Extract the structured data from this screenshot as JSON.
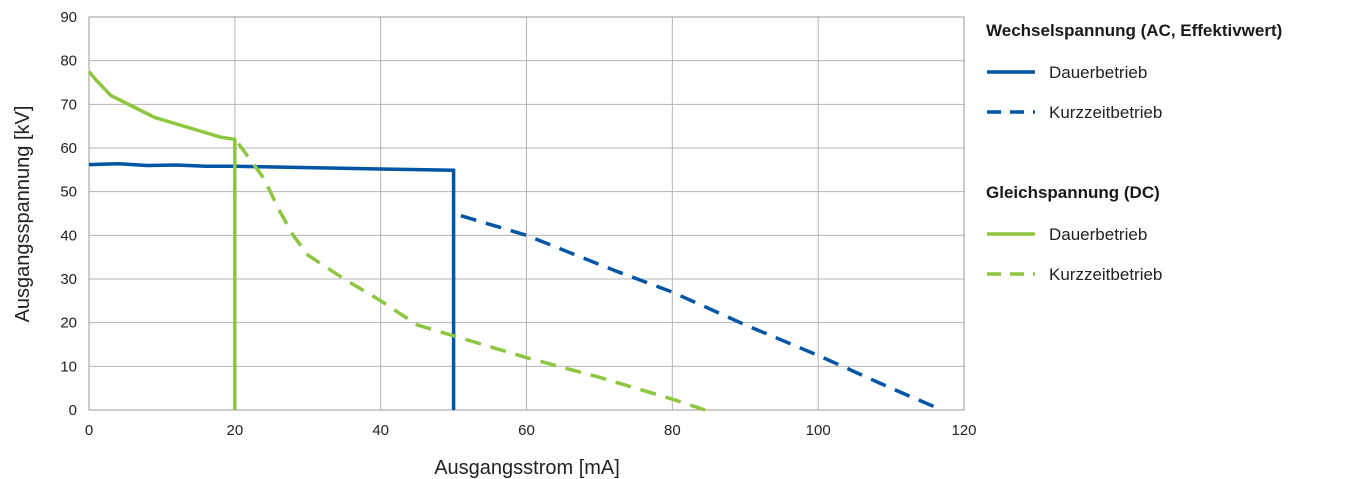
{
  "chart_data": {
    "type": "line",
    "xlabel": "Ausgangsstrom [mA]",
    "ylabel": "Ausgangsspannung [kV]",
    "xlim": [
      0,
      120
    ],
    "ylim": [
      0,
      90
    ],
    "x_ticks": [
      0,
      20,
      40,
      60,
      80,
      100,
      120
    ],
    "y_ticks": [
      0,
      10,
      20,
      30,
      40,
      50,
      60,
      70,
      80,
      90
    ],
    "grid": true,
    "legend_position": "right",
    "legend_groups": [
      {
        "heading": "Wechselspannung (AC, Effektivwert)",
        "entries": [
          {
            "label": "Dauerbetrieb",
            "color": "#0055a4",
            "dash": "solid"
          },
          {
            "label": "Kurzzeitbetrieb",
            "color": "#0055a4",
            "dash": "dashed"
          }
        ]
      },
      {
        "heading": "Gleichspannung (DC)",
        "entries": [
          {
            "label": "Dauerbetrieb",
            "color": "#8dc63f",
            "dash": "solid"
          },
          {
            "label": "Kurzzeitbetrieb",
            "color": "#8dc63f",
            "dash": "dashed"
          }
        ]
      }
    ],
    "series": [
      {
        "group": "Wechselspannung (AC, Effektivwert)",
        "name": "Dauerbetrieb",
        "color": "#0055a4",
        "dash": "solid",
        "points": [
          [
            0,
            56.2
          ],
          [
            4,
            56.4
          ],
          [
            8,
            56.0
          ],
          [
            12,
            56.1
          ],
          [
            16,
            55.8
          ],
          [
            20,
            55.8
          ],
          [
            30,
            55.5
          ],
          [
            40,
            55.2
          ],
          [
            50,
            54.9
          ],
          [
            50,
            0
          ]
        ]
      },
      {
        "group": "Wechselspannung (AC, Effektivwert)",
        "name": "Kurzzeitbetrieb",
        "color": "#0055a4",
        "dash": "dashed",
        "points": [
          [
            51,
            44.5
          ],
          [
            60,
            40
          ],
          [
            72,
            32
          ],
          [
            80,
            27
          ],
          [
            90,
            19.5
          ],
          [
            100,
            12.5
          ],
          [
            110,
            5
          ],
          [
            117,
            0
          ]
        ]
      },
      {
        "group": "Gleichspannung (DC)",
        "name": "Dauerbetrieb",
        "color": "#8dc63f",
        "dash": "solid",
        "points": [
          [
            0,
            77.5
          ],
          [
            1,
            75.5
          ],
          [
            3,
            72
          ],
          [
            6,
            69.5
          ],
          [
            9,
            67
          ],
          [
            12,
            65.5
          ],
          [
            15,
            64
          ],
          [
            18,
            62.5
          ],
          [
            20,
            62
          ],
          [
            20,
            0
          ]
        ]
      },
      {
        "group": "Gleichspannung (DC)",
        "name": "Kurzzeitbetrieb",
        "color": "#8dc63f",
        "dash": "dashed",
        "points": [
          [
            20.5,
            61
          ],
          [
            24,
            53
          ],
          [
            26,
            46
          ],
          [
            28,
            40
          ],
          [
            30,
            35.5
          ],
          [
            35,
            30
          ],
          [
            40,
            25
          ],
          [
            45,
            19.5
          ],
          [
            50,
            17
          ],
          [
            60,
            12
          ],
          [
            70,
            7.5
          ],
          [
            80,
            2.5
          ],
          [
            84.5,
            0
          ]
        ]
      }
    ]
  }
}
